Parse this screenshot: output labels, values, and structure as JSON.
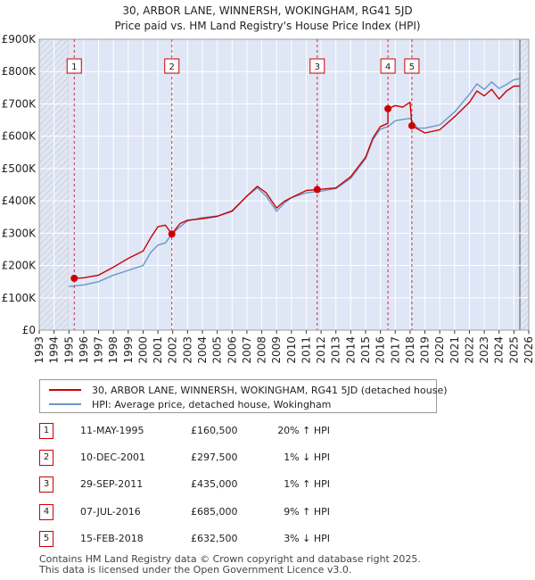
{
  "title": {
    "line1": "30, ARBOR LANE, WINNERSH, WOKINGHAM, RG41 5JD",
    "line2": "Price paid vs. HM Land Registry's House Price Index (HPI)"
  },
  "colors": {
    "property": "#cc0000",
    "hpi": "#6b96c8",
    "shade": "#dfe6f5",
    "hatch": "#c5c5c5",
    "grid": "#ffffff"
  },
  "legend": {
    "property_label": "30, ARBOR LANE, WINNERSH, WOKINGHAM, RG41 5JD (detached house)",
    "hpi_label": "HPI: Average price, detached house, Wokingham"
  },
  "sales": [
    {
      "num": "1",
      "date": "11-MAY-1995",
      "price": "£160,500",
      "hpi_diff": "20% ↑ HPI"
    },
    {
      "num": "2",
      "date": "10-DEC-2001",
      "price": "£297,500",
      "hpi_diff": "1% ↓ HPI"
    },
    {
      "num": "3",
      "date": "29-SEP-2011",
      "price": "£435,000",
      "hpi_diff": "1% ↑ HPI"
    },
    {
      "num": "4",
      "date": "07-JUL-2016",
      "price": "£685,000",
      "hpi_diff": "9% ↑ HPI"
    },
    {
      "num": "5",
      "date": "15-FEB-2018",
      "price": "£632,500",
      "hpi_diff": "3% ↓ HPI"
    }
  ],
  "footer": {
    "line1": "Contains HM Land Registry data © Crown copyright and database right 2025.",
    "line2": "This data is licensed under the Open Government Licence v3.0."
  },
  "chart_data": {
    "type": "line",
    "title": "30, ARBOR LANE, WINNERSH, WOKINGHAM, RG41 5JD",
    "subtitle": "Price paid vs. HM Land Registry's House Price Index (HPI)",
    "xlabel": "",
    "ylabel": "",
    "xlim": [
      1993,
      2026
    ],
    "ylim": [
      0,
      900000
    ],
    "x_ticks": [
      "1993",
      "1994",
      "1995",
      "1996",
      "1997",
      "1998",
      "1999",
      "2000",
      "2001",
      "2002",
      "2003",
      "2004",
      "2005",
      "2006",
      "2007",
      "2008",
      "2009",
      "2010",
      "2011",
      "2012",
      "2013",
      "2014",
      "2015",
      "2016",
      "2017",
      "2018",
      "2019",
      "2020",
      "2021",
      "2022",
      "2023",
      "2024",
      "2025",
      "2026"
    ],
    "y_ticks": [
      {
        "value": 0,
        "label": "£0"
      },
      {
        "value": 100000,
        "label": "£100K"
      },
      {
        "value": 200000,
        "label": "£200K"
      },
      {
        "value": 300000,
        "label": "£300K"
      },
      {
        "value": 400000,
        "label": "£400K"
      },
      {
        "value": 500000,
        "label": "£500K"
      },
      {
        "value": 600000,
        "label": "£600K"
      },
      {
        "value": 700000,
        "label": "£700K"
      },
      {
        "value": 800000,
        "label": "£800K"
      },
      {
        "value": 900000,
        "label": "£900K"
      }
    ],
    "data_range": [
      1995.0,
      2025.4
    ],
    "grid": true,
    "legend_position": "below",
    "sale_markers": [
      {
        "label": "1",
        "x": 1995.36,
        "y": 160500
      },
      {
        "label": "2",
        "x": 2001.94,
        "y": 297500
      },
      {
        "label": "3",
        "x": 2011.74,
        "y": 435000
      },
      {
        "label": "4",
        "x": 2016.51,
        "y": 685000
      },
      {
        "label": "5",
        "x": 2018.12,
        "y": 632500
      }
    ],
    "series": [
      {
        "name": "30, ARBOR LANE, WINNERSH, WOKINGHAM, RG41 5JD (detached house)",
        "points": [
          [
            1995.36,
            160500
          ],
          [
            1996.0,
            162000
          ],
          [
            1997.0,
            170000
          ],
          [
            1998.0,
            195000
          ],
          [
            1999.0,
            222000
          ],
          [
            2000.0,
            245000
          ],
          [
            2000.5,
            285000
          ],
          [
            2001.0,
            320000
          ],
          [
            2001.5,
            325000
          ],
          [
            2001.94,
            297500
          ],
          [
            2002.5,
            330000
          ],
          [
            2003.0,
            340000
          ],
          [
            2004.0,
            345000
          ],
          [
            2005.0,
            352000
          ],
          [
            2006.0,
            368000
          ],
          [
            2007.0,
            415000
          ],
          [
            2007.7,
            445000
          ],
          [
            2008.3,
            425000
          ],
          [
            2009.0,
            378000
          ],
          [
            2009.5,
            398000
          ],
          [
            2010.0,
            410000
          ],
          [
            2011.0,
            432000
          ],
          [
            2011.74,
            435000
          ],
          [
            2012.0,
            436000
          ],
          [
            2013.0,
            440000
          ],
          [
            2014.0,
            475000
          ],
          [
            2015.0,
            535000
          ],
          [
            2015.5,
            595000
          ],
          [
            2016.0,
            630000
          ],
          [
            2016.5,
            640000
          ],
          [
            2016.51,
            685000
          ],
          [
            2017.0,
            695000
          ],
          [
            2017.5,
            690000
          ],
          [
            2018.0,
            705000
          ],
          [
            2018.12,
            632500
          ],
          [
            2019.0,
            610000
          ],
          [
            2020.0,
            620000
          ],
          [
            2021.0,
            660000
          ],
          [
            2022.0,
            705000
          ],
          [
            2022.5,
            740000
          ],
          [
            2023.0,
            725000
          ],
          [
            2023.5,
            745000
          ],
          [
            2024.0,
            715000
          ],
          [
            2024.5,
            740000
          ],
          [
            2025.0,
            755000
          ],
          [
            2025.4,
            755000
          ]
        ]
      },
      {
        "name": "HPI: Average price, detached house, Wokingham",
        "points": [
          [
            1995.0,
            135000
          ],
          [
            1996.0,
            140000
          ],
          [
            1997.0,
            150000
          ],
          [
            1998.0,
            170000
          ],
          [
            1999.0,
            185000
          ],
          [
            2000.0,
            200000
          ],
          [
            2000.5,
            240000
          ],
          [
            2001.0,
            263000
          ],
          [
            2001.5,
            270000
          ],
          [
            2002.0,
            300000
          ],
          [
            2002.5,
            320000
          ],
          [
            2003.0,
            338000
          ],
          [
            2004.0,
            348000
          ],
          [
            2005.0,
            353000
          ],
          [
            2006.0,
            370000
          ],
          [
            2007.0,
            415000
          ],
          [
            2007.7,
            440000
          ],
          [
            2008.3,
            415000
          ],
          [
            2009.0,
            368000
          ],
          [
            2009.5,
            392000
          ],
          [
            2010.0,
            410000
          ],
          [
            2011.0,
            425000
          ],
          [
            2012.0,
            430000
          ],
          [
            2013.0,
            438000
          ],
          [
            2014.0,
            470000
          ],
          [
            2015.0,
            530000
          ],
          [
            2015.5,
            590000
          ],
          [
            2016.0,
            622000
          ],
          [
            2016.5,
            630000
          ],
          [
            2017.0,
            648000
          ],
          [
            2017.5,
            652000
          ],
          [
            2018.0,
            655000
          ],
          [
            2018.5,
            625000
          ],
          [
            2019.0,
            625000
          ],
          [
            2020.0,
            635000
          ],
          [
            2021.0,
            675000
          ],
          [
            2022.0,
            730000
          ],
          [
            2022.5,
            762000
          ],
          [
            2023.0,
            745000
          ],
          [
            2023.5,
            768000
          ],
          [
            2024.0,
            748000
          ],
          [
            2024.5,
            760000
          ],
          [
            2025.0,
            775000
          ],
          [
            2025.4,
            778000
          ]
        ]
      }
    ]
  }
}
